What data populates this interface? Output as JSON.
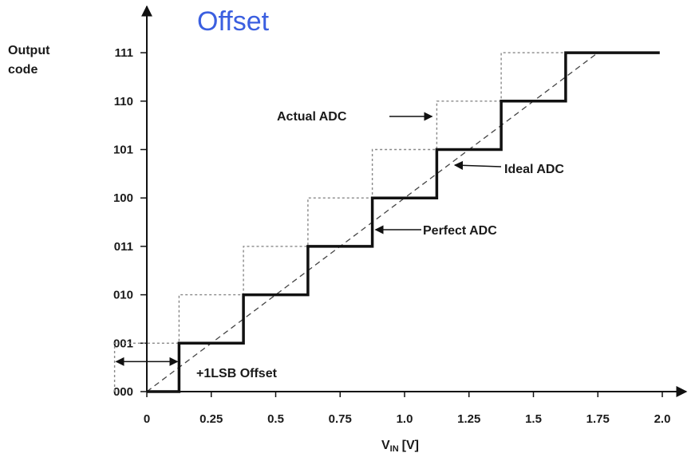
{
  "chart_data": {
    "type": "line",
    "title": "Offset",
    "ylabel_line1": "Output",
    "ylabel_line2": "code",
    "xlabel_main": "V",
    "xlabel_sub": "IN",
    "xlabel_unit": "[V]",
    "xlim": [
      0,
      2.0
    ],
    "ylim": [
      0,
      7
    ],
    "xticks": [
      0,
      0.25,
      0.5,
      0.75,
      1.0,
      1.25,
      1.5,
      1.75,
      2.0
    ],
    "xtick_labels": [
      "0",
      "0.25",
      "0.5",
      "0.75",
      "1.0",
      "1.25",
      "1.5",
      "1.75",
      "2.0"
    ],
    "yticks": [
      0,
      1,
      2,
      3,
      4,
      5,
      6,
      7
    ],
    "ytick_labels": [
      "000",
      "001",
      "010",
      "011",
      "100",
      "101",
      "110",
      "111"
    ],
    "grid": false,
    "series": [
      {
        "name": "Actual ADC",
        "style": "dotted",
        "points": [
          [
            -0.125,
            0
          ],
          [
            -0.125,
            1
          ],
          [
            0.125,
            1
          ],
          [
            0.125,
            2
          ],
          [
            0.375,
            2
          ],
          [
            0.375,
            3
          ],
          [
            0.625,
            3
          ],
          [
            0.625,
            4
          ],
          [
            0.875,
            4
          ],
          [
            0.875,
            5
          ],
          [
            1.125,
            5
          ],
          [
            1.125,
            6
          ],
          [
            1.375,
            6
          ],
          [
            1.375,
            7
          ],
          [
            1.625,
            7
          ]
        ]
      },
      {
        "name": "Ideal ADC",
        "style": "dashed",
        "points": [
          [
            0,
            0
          ],
          [
            1.75,
            7
          ]
        ]
      },
      {
        "name": "Perfect ADC",
        "style": "solid-thick",
        "points": [
          [
            0,
            0
          ],
          [
            0.125,
            0
          ],
          [
            0.125,
            1
          ],
          [
            0.375,
            1
          ],
          [
            0.375,
            2
          ],
          [
            0.625,
            2
          ],
          [
            0.625,
            3
          ],
          [
            0.875,
            3
          ],
          [
            0.875,
            4
          ],
          [
            1.125,
            4
          ],
          [
            1.125,
            5
          ],
          [
            1.375,
            5
          ],
          [
            1.375,
            6
          ],
          [
            1.625,
            6
          ],
          [
            1.625,
            7
          ],
          [
            1.99,
            7
          ]
        ]
      }
    ],
    "annotations": [
      {
        "text": "Actual ADC",
        "arrow_to": [
          1.125,
          5.7
        ]
      },
      {
        "text": "Ideal ADC",
        "arrow_to": [
          1.2,
          4.75
        ]
      },
      {
        "text": "Perfect ADC",
        "arrow_to": [
          0.875,
          3.35
        ]
      },
      {
        "text": "+1LSB Offset",
        "span": [
          -0.125,
          0.125
        ],
        "at_y": 0.62
      }
    ],
    "colors": {
      "title": "#3b5fe0",
      "ink": "#111111",
      "dotted": "#888888",
      "dashed": "#444444"
    }
  }
}
